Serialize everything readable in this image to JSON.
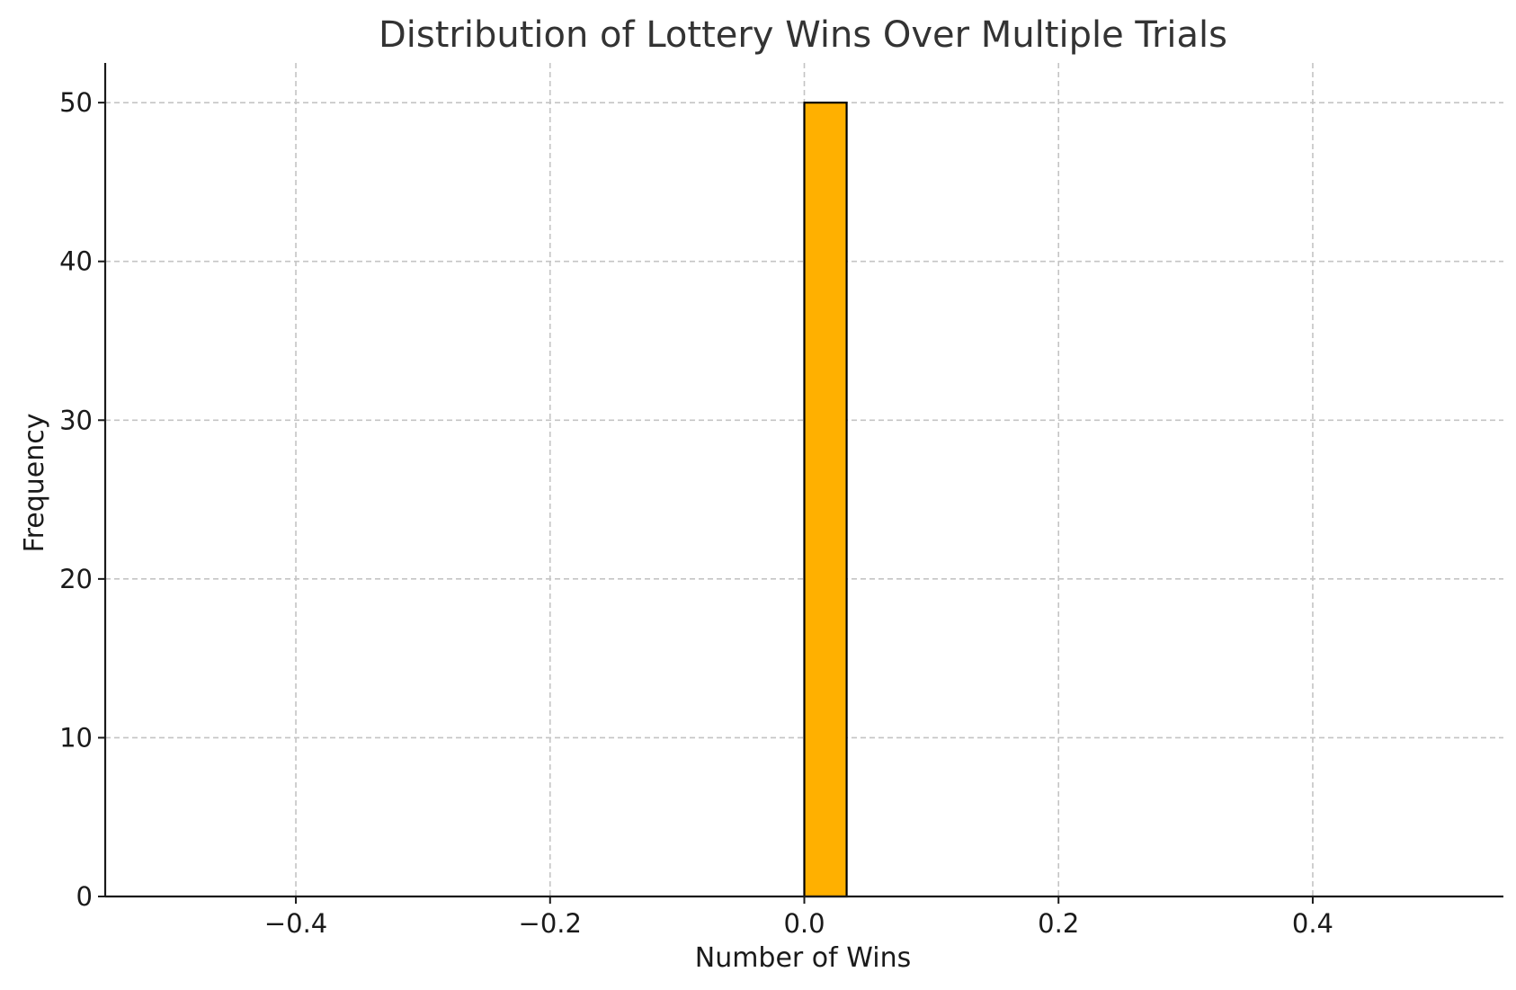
{
  "chart_data": {
    "type": "bar",
    "title": "Distribution of Lottery Wins Over Multiple Trials",
    "xlabel": "Number of Wins",
    "ylabel": "Frequency",
    "xlim": [
      -0.55,
      0.55
    ],
    "ylim": [
      0,
      52.5
    ],
    "x_ticks": [
      -0.4,
      -0.2,
      0.0,
      0.2,
      0.4
    ],
    "x_tick_labels": [
      "−0.4",
      "−0.2",
      "0.0",
      "0.2",
      "0.4"
    ],
    "y_ticks": [
      0,
      10,
      20,
      30,
      40,
      50
    ],
    "y_tick_labels": [
      "0",
      "10",
      "20",
      "30",
      "40",
      "50"
    ],
    "grid": true,
    "bins": [
      {
        "x_start": 0.0,
        "x_end": 0.0333,
        "value": 50
      }
    ],
    "bar_color": "#ffb000",
    "bar_edge_color": "#000000"
  }
}
